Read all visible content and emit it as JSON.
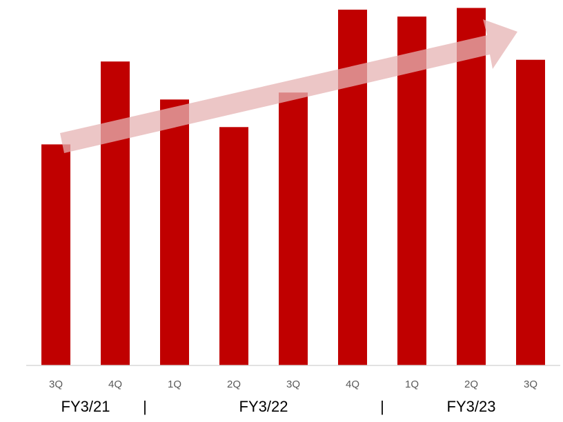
{
  "chart_data": {
    "type": "bar",
    "categories": [
      "3Q",
      "4Q",
      "1Q",
      "2Q",
      "3Q",
      "4Q",
      "1Q",
      "2Q",
      "3Q"
    ],
    "values": [
      64,
      88,
      77,
      69,
      79,
      103,
      101,
      103.5,
      88.5
    ],
    "ylim": [
      0,
      105
    ],
    "title": "",
    "xlabel": "",
    "ylabel": "",
    "grid": false,
    "legend": "none",
    "annotations": [
      "trend-arrow-upward"
    ],
    "fiscal_groups": [
      {
        "label": "FY3/21",
        "start": 0,
        "end": 1
      },
      {
        "label": "FY3/22",
        "start": 2,
        "end": 5
      },
      {
        "label": "FY3/23",
        "start": 6,
        "end": 8
      }
    ],
    "group_separator": "|",
    "colors": {
      "bar": "#c00000",
      "axis": "#d9d9d9",
      "arrow": "#e6b3b3"
    }
  }
}
